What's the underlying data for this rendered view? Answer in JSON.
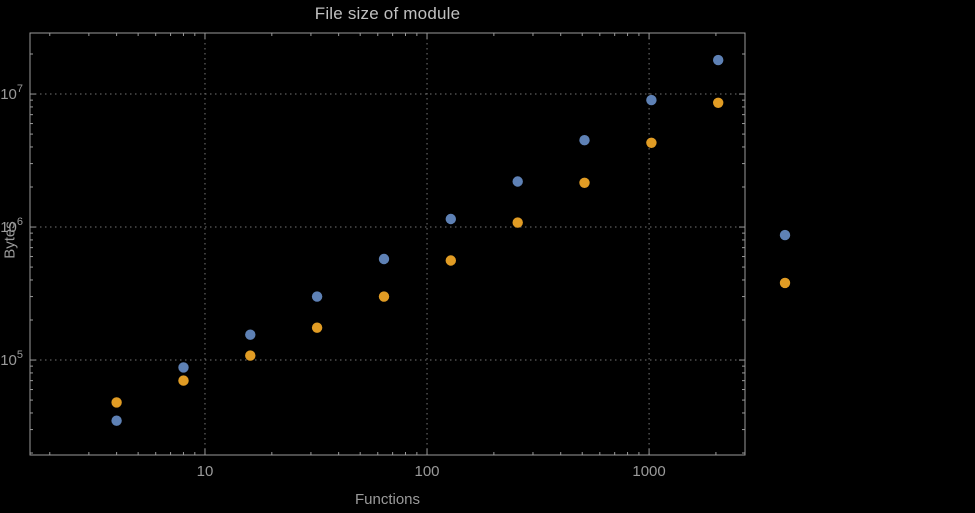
{
  "chart_data": {
    "type": "scatter",
    "title": "File size of module",
    "xlabel": "Functions",
    "ylabel": "Bytes",
    "x_scale": "log",
    "y_scale": "log",
    "xlim_log": [
      0.212,
      3.432
    ],
    "ylim_log": [
      4.286,
      7.459
    ],
    "grid": "dotted",
    "legend": "none",
    "x_ticks": [
      {
        "value": 10,
        "label": "10"
      },
      {
        "value": 100,
        "label": "100"
      },
      {
        "value": 1000,
        "label": "1000"
      }
    ],
    "y_ticks": [
      {
        "value": 100000,
        "base": "10",
        "exp": "5"
      },
      {
        "value": 1000000,
        "base": "10",
        "exp": "6"
      },
      {
        "value": 10000000,
        "base": "10",
        "exp": "7"
      }
    ],
    "series": [
      {
        "name": "blue",
        "color": "#5E81B5",
        "points": [
          [
            4,
            35000
          ],
          [
            8,
            88000
          ],
          [
            16,
            155000
          ],
          [
            32,
            300000
          ],
          [
            64,
            575000
          ],
          [
            128,
            1150000
          ],
          [
            256,
            2200000
          ],
          [
            512,
            4500000
          ],
          [
            1024,
            9000000
          ],
          [
            2048,
            18000000
          ],
          [
            4096,
            870000
          ]
        ]
      },
      {
        "name": "orange",
        "color": "#E19C24",
        "points": [
          [
            4,
            48000
          ],
          [
            8,
            70000
          ],
          [
            16,
            108000
          ],
          [
            32,
            175000
          ],
          [
            64,
            300000
          ],
          [
            128,
            560000
          ],
          [
            256,
            1080000
          ],
          [
            512,
            2150000
          ],
          [
            1024,
            4300000
          ],
          [
            2048,
            8600000
          ],
          [
            4096,
            380000
          ]
        ]
      }
    ],
    "colors": {
      "background": "#000000",
      "frame": "#9a9a9a",
      "grid": "#757575",
      "text": "#9a9a9a",
      "title": "#c0c0c0"
    }
  }
}
